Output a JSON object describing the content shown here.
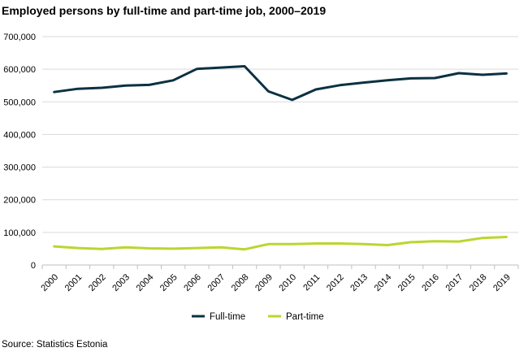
{
  "chart_data": {
    "type": "line",
    "title": "Employed persons by full-time and part-time job, 2000–2019",
    "xlabel": "",
    "ylabel": "",
    "source": "Source: Statistics Estonia",
    "ylim": [
      0,
      700000
    ],
    "yticks": [
      0,
      100000,
      200000,
      300000,
      400000,
      500000,
      600000,
      700000
    ],
    "ytick_labels": [
      "0",
      "100,000",
      "200,000",
      "300,000",
      "400,000",
      "500,000",
      "600,000",
      "700,000"
    ],
    "grid": true,
    "legend_position": "bottom",
    "x": [
      "2000",
      "2001",
      "2002",
      "2003",
      "2004",
      "2005",
      "2006",
      "2007",
      "2008",
      "2009",
      "2010",
      "2011",
      "2012",
      "2013",
      "2014",
      "2015",
      "2016",
      "2017",
      "2018",
      "2019"
    ],
    "series": [
      {
        "name": "Full-time",
        "color": "#0b3142",
        "values": [
          530000,
          540000,
          543000,
          550000,
          552000,
          566000,
          601000,
          605000,
          609000,
          532000,
          506000,
          538000,
          551000,
          559000,
          566000,
          572000,
          573000,
          588000,
          583000,
          587000
        ]
      },
      {
        "name": "Part-time",
        "color": "#bcd52f",
        "values": [
          57000,
          52000,
          49000,
          54000,
          51000,
          50000,
          52000,
          54000,
          48000,
          64000,
          64000,
          66000,
          66000,
          64000,
          61000,
          70000,
          73000,
          72000,
          83000,
          86000
        ]
      }
    ]
  }
}
